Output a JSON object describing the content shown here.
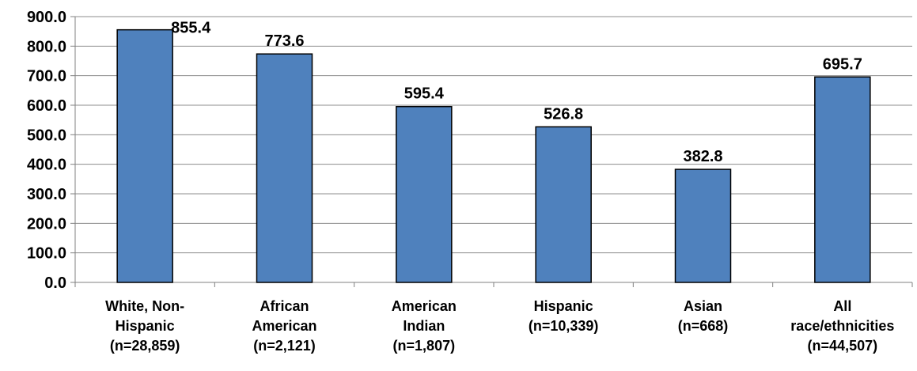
{
  "chart_data": {
    "type": "bar",
    "categories": [
      [
        "White, Non-",
        "Hispanic",
        "(n=28,859)"
      ],
      [
        "African",
        "American",
        "(n=2,121)"
      ],
      [
        "American",
        "Indian",
        "(n=1,807)"
      ],
      [
        "Hispanic",
        "(n=10,339)"
      ],
      [
        "Asian",
        "(n=668)"
      ],
      [
        "All",
        "race/ethnicities",
        "(n=44,507)"
      ]
    ],
    "values": [
      855.4,
      773.6,
      595.4,
      526.8,
      382.8,
      695.7
    ],
    "data_labels": [
      "855.4",
      "773.6",
      "595.4",
      "526.8",
      "382.8",
      "695.7"
    ],
    "y_ticks": [
      "0.0",
      "100.0",
      "200.0",
      "300.0",
      "400.0",
      "500.0",
      "600.0",
      "700.0",
      "800.0",
      "900.0"
    ],
    "ylim": [
      0,
      900
    ],
    "grid": true,
    "bar_color": "#4f81bd",
    "title": "",
    "xlabel": "",
    "ylabel": ""
  }
}
